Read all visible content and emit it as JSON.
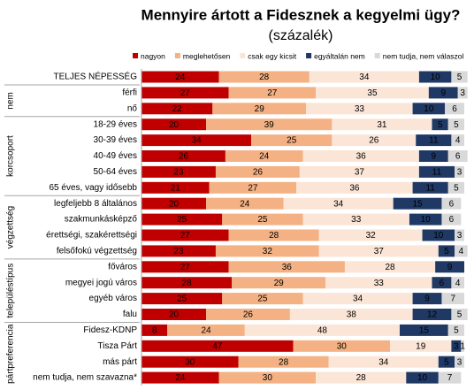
{
  "chart_data": {
    "type": "stacked-bar-horizontal",
    "title": "Mennyire ártott a Fidesznek a kegyelmi ügy?",
    "subtitle": "(százalék)",
    "xlim": [
      0,
      100
    ],
    "categories": [
      "TELJES NÉPESSÉG",
      "férfi",
      "nő",
      "18-29 éves",
      "30-39 éves",
      "40-49 éves",
      "50-64 éves",
      "65 éves, vagy idősebb",
      "legfeljebb 8 általános",
      "szakmunkásképző",
      "érettségi, szakérettségi",
      "felsőfokú végzettség",
      "főváros",
      "megyei jogú város",
      "egyéb város",
      "falu",
      "Fidesz-KDNP",
      "Tisza Párt",
      "más párt",
      "nem tudja, nem szavazna*"
    ],
    "groups": [
      {
        "label": "nem",
        "rows": [
          1,
          2
        ]
      },
      {
        "label": "korcsoport",
        "rows": [
          3,
          7
        ]
      },
      {
        "label": "végzettség",
        "rows": [
          8,
          11
        ]
      },
      {
        "label": "településtípus",
        "rows": [
          12,
          15
        ]
      },
      {
        "label": "pártpreferencia",
        "rows": [
          16,
          19
        ]
      }
    ],
    "series": [
      {
        "name": "nagyon",
        "color": "#c00000",
        "label_color": "#ffffff",
        "values": [
          24,
          27,
          22,
          20,
          34,
          26,
          23,
          21,
          20,
          25,
          27,
          23,
          27,
          28,
          25,
          20,
          8,
          47,
          30,
          24
        ]
      },
      {
        "name": "meglehetősen",
        "color": "#f4b183",
        "label_color": "#000000",
        "values": [
          28,
          27,
          29,
          39,
          25,
          24,
          26,
          27,
          24,
          25,
          28,
          32,
          36,
          29,
          25,
          26,
          24,
          30,
          28,
          30
        ]
      },
      {
        "name": "csak egy kicsit",
        "color": "#fbe5d6",
        "label_color": "#000000",
        "values": [
          34,
          35,
          33,
          31,
          26,
          36,
          37,
          36,
          34,
          33,
          32,
          37,
          28,
          33,
          34,
          38,
          48,
          19,
          34,
          28
        ]
      },
      {
        "name": "egyáltalán nem",
        "color": "#1f3864",
        "label_color": "#ffffff",
        "values": [
          10,
          9,
          10,
          5,
          11,
          9,
          11,
          11,
          15,
          10,
          10,
          5,
          9,
          6,
          9,
          12,
          15,
          3,
          5,
          10
        ]
      },
      {
        "name": "nem tudja, nem válaszol",
        "color": "#d9d9d9",
        "label_color": "#000000",
        "values": [
          5,
          3,
          6,
          5,
          4,
          6,
          3,
          5,
          6,
          6,
          3,
          4,
          null,
          4,
          7,
          5,
          5,
          1,
          3,
          7
        ]
      }
    ]
  }
}
